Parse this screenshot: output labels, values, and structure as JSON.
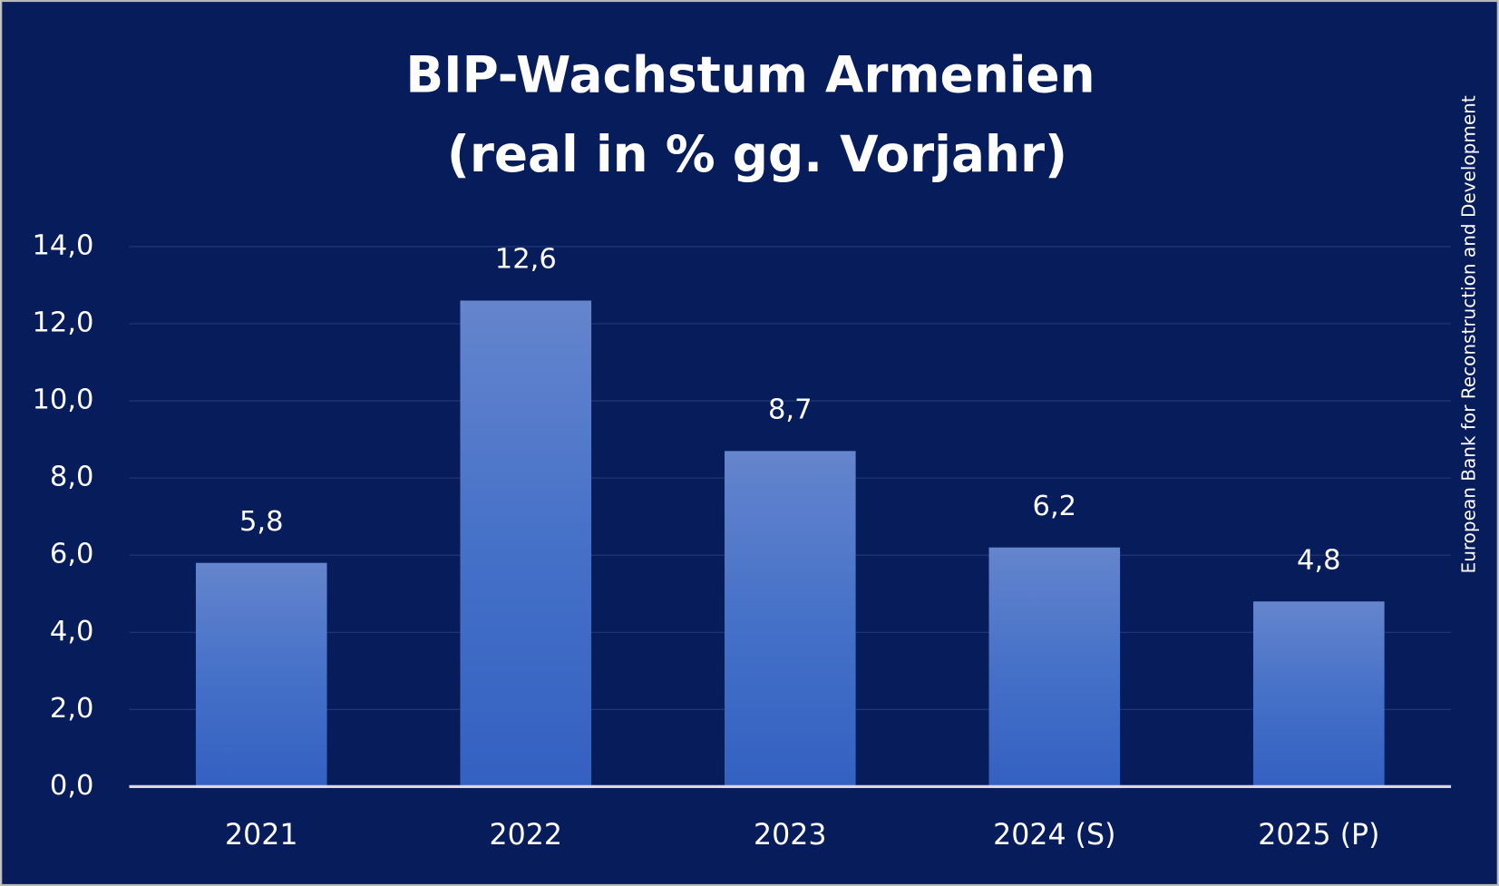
{
  "chart_data": {
    "type": "bar",
    "title": "BIP-Wachstum Armenien",
    "subtitle": "(real in % gg. Vorjahr)",
    "source": "European Bank for Reconstruction and Development",
    "categories": [
      "2021",
      "2022",
      "2023",
      "2024 (S)",
      "2025 (P)"
    ],
    "values": [
      5.8,
      12.6,
      8.7,
      6.2,
      4.8
    ],
    "value_labels": [
      "5,8",
      "12,6",
      "8,7",
      "6,2",
      "4,8"
    ],
    "color": "#4a72c8",
    "ylim": [
      0,
      14
    ],
    "yticks": [
      {
        "value": 0,
        "label": "0,0"
      },
      {
        "value": 2,
        "label": "2,0"
      },
      {
        "value": 4,
        "label": "4,0"
      },
      {
        "value": 6,
        "label": "6,0"
      },
      {
        "value": 8,
        "label": "8,0"
      },
      {
        "value": 10,
        "label": "10,0"
      },
      {
        "value": 12,
        "label": "12,0"
      },
      {
        "value": 14,
        "label": "14,0"
      }
    ],
    "grid": true
  }
}
